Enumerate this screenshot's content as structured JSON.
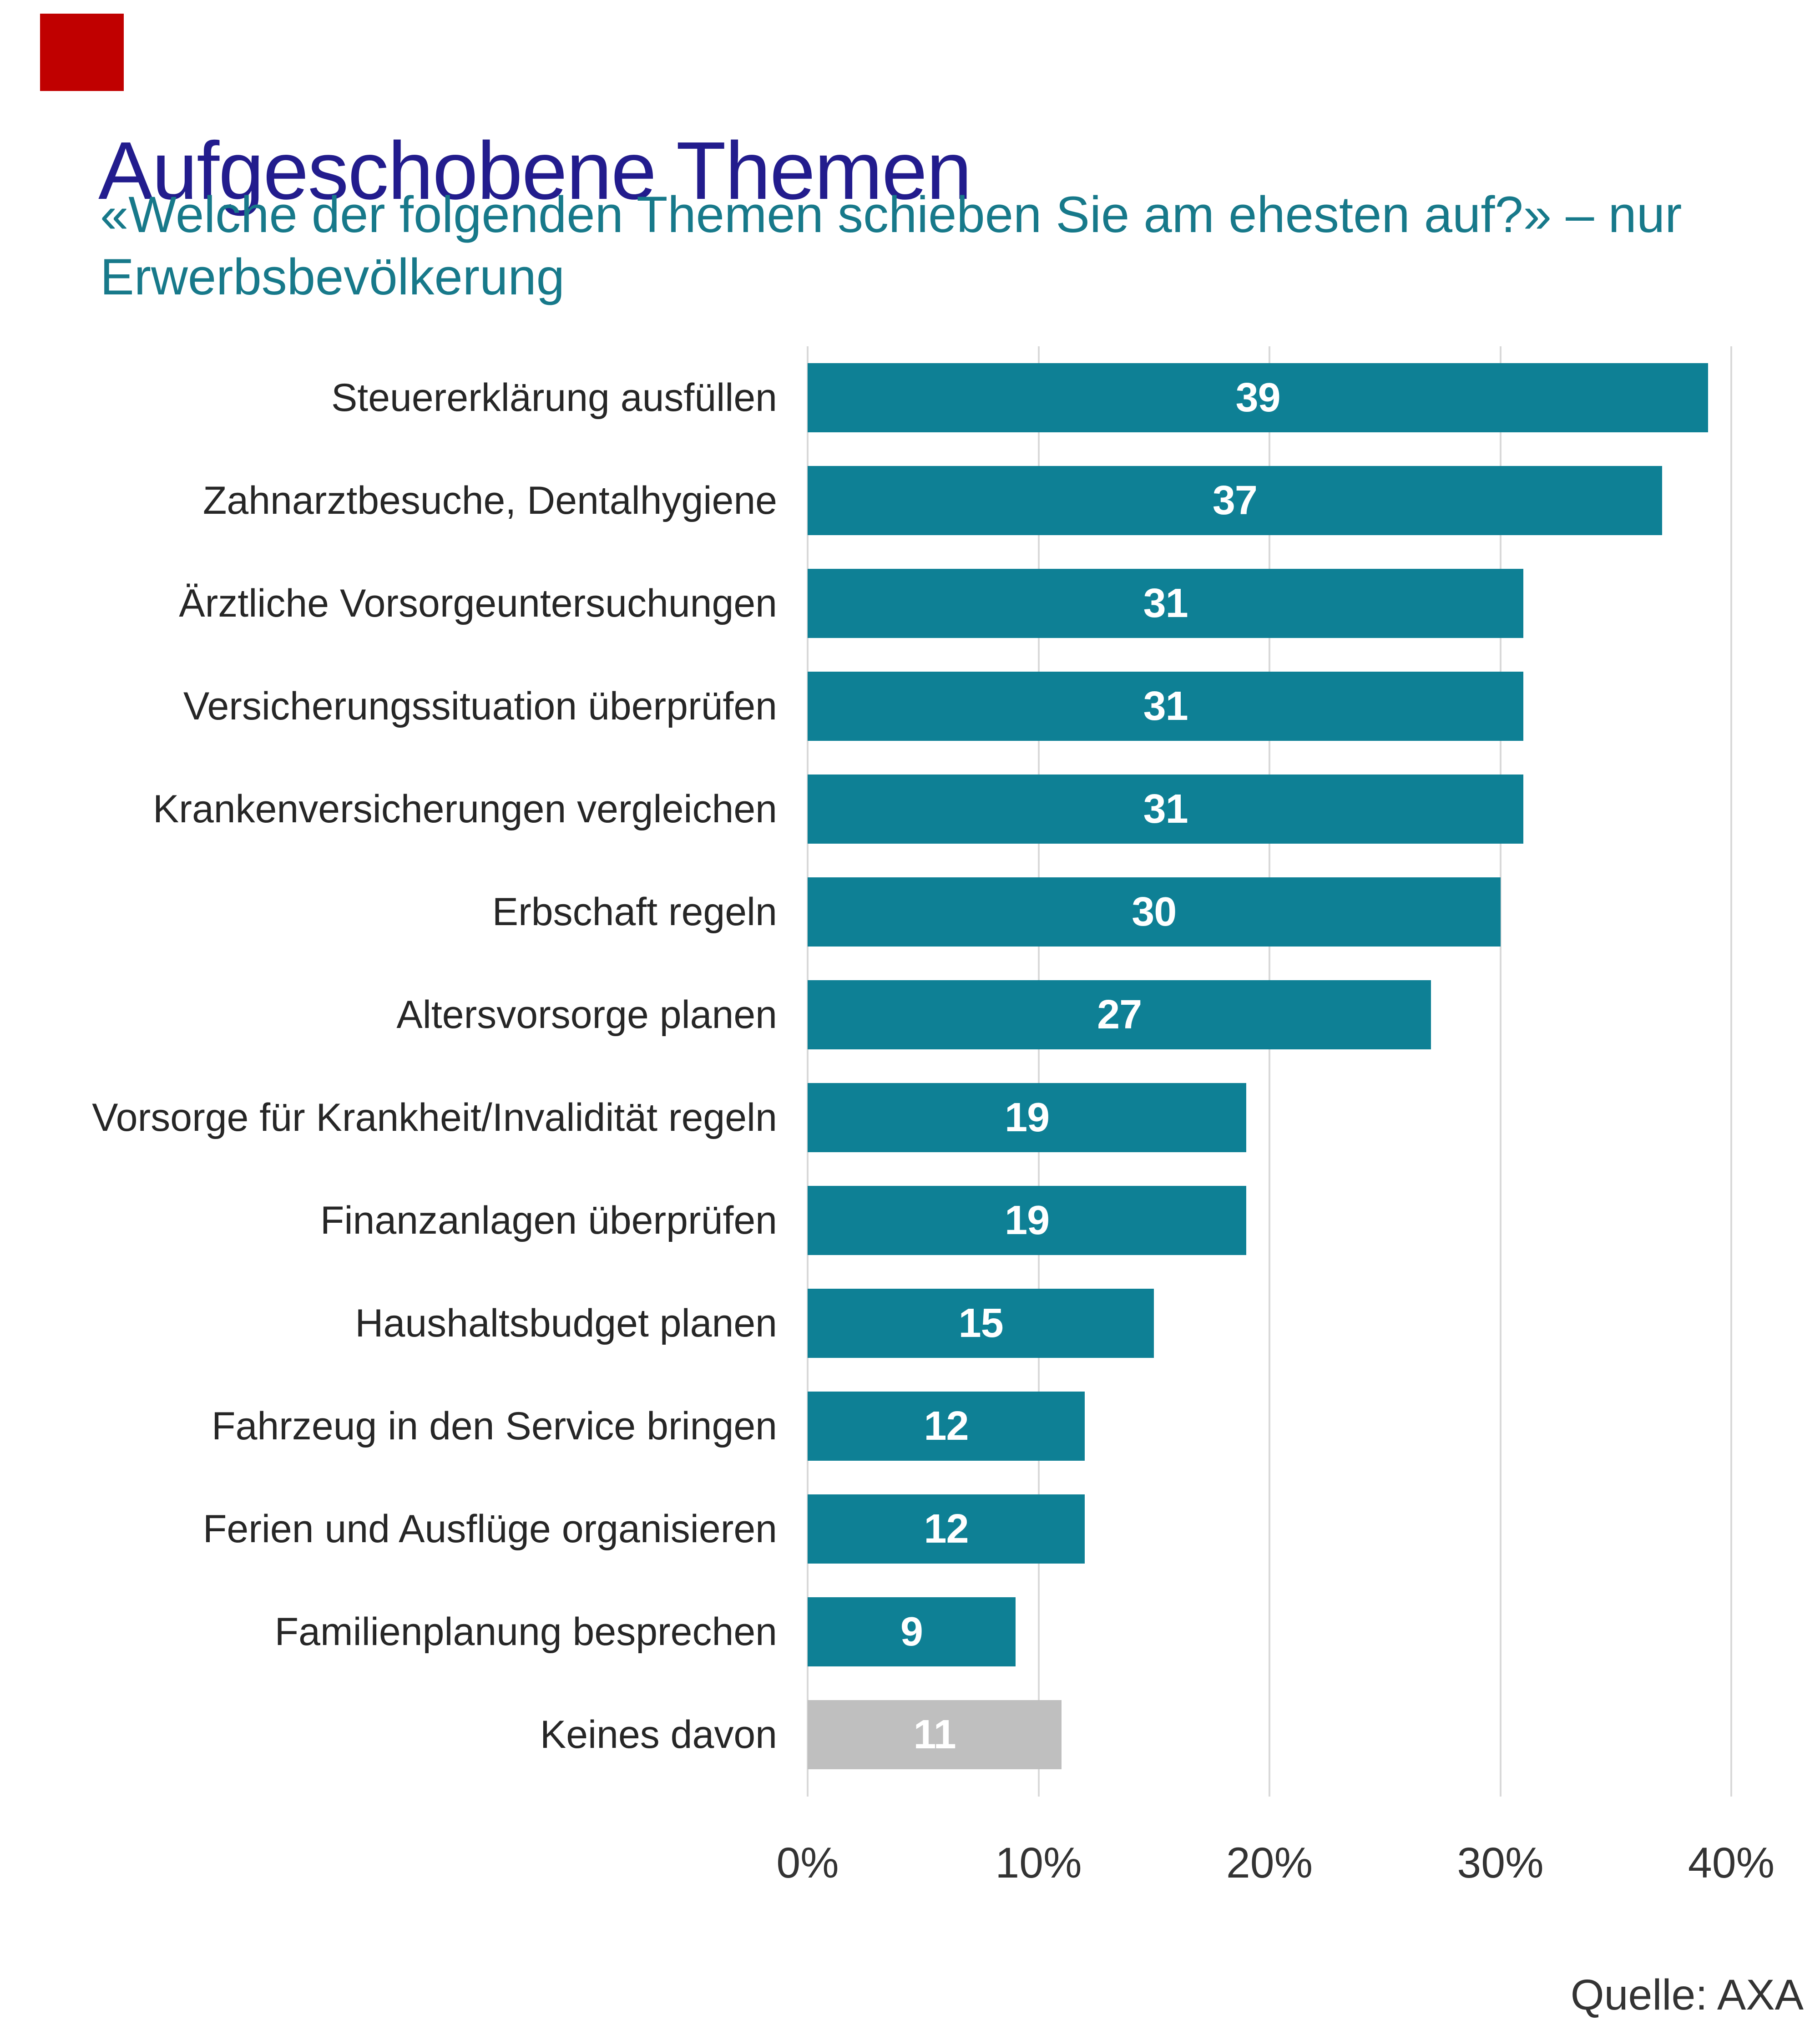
{
  "logo": {
    "color": "#c00000"
  },
  "title": "Aufgeschobene Themen",
  "subtitle": "«Welche der folgenden Themen schieben Sie am ehesten auf?» – nur Erwerbsbevölkerung",
  "source": "Quelle: AXA",
  "colors": {
    "title": "#221c8d",
    "subtitle": "#17798a",
    "bar_teal": "#0e8095",
    "bar_gray": "#bfbfbf",
    "grid": "#d9d9d9",
    "category_label": "#262626",
    "axis_label": "#333333",
    "value_label": "#ffffff"
  },
  "chart_data": {
    "type": "bar",
    "orientation": "horizontal",
    "title": "Aufgeschobene Themen",
    "subtitle": "«Welche der folgenden Themen schieben Sie am ehesten auf?» – nur Erwerbsbevölkerung",
    "xlabel": "",
    "ylabel": "",
    "xlim": [
      0,
      40
    ],
    "x_ticks": [
      "0%",
      "10%",
      "20%",
      "30%",
      "40%"
    ],
    "x_tick_values": [
      0,
      10,
      20,
      30,
      40
    ],
    "grid": "vertical-only",
    "legend": "none",
    "value_labels": "inside-center-white",
    "categories": [
      "Steuererklärung ausfüllen",
      "Zahnarztbesuche, Dentalhygiene",
      "Ärztliche Vorsorgeuntersuchungen",
      "Versicherungssituation überprüfen",
      "Krankenversicherungen vergleichen",
      "Erbschaft regeln",
      "Altersvorsorge planen",
      "Vorsorge für Krankheit/Invalidität regeln",
      "Finanzanlagen überprüfen",
      "Haushaltsbudget planen",
      "Fahrzeug in den Service bringen",
      "Ferien und Ausflüge organisieren",
      "Familienplanung besprechen",
      "Keines davon"
    ],
    "values": [
      39,
      37,
      31,
      31,
      31,
      30,
      27,
      19,
      19,
      15,
      12,
      12,
      9,
      11
    ],
    "bar_colors": [
      "teal",
      "teal",
      "teal",
      "teal",
      "teal",
      "teal",
      "teal",
      "teal",
      "teal",
      "teal",
      "teal",
      "teal",
      "teal",
      "gray"
    ]
  }
}
